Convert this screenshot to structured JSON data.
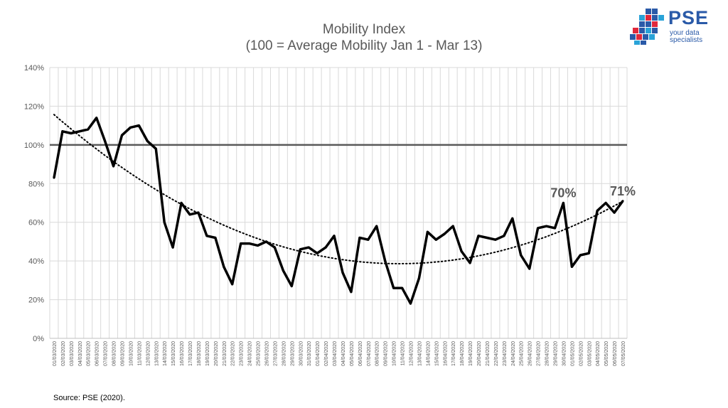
{
  "title_line1": "Mobility Index",
  "title_line2": "(100 = Average Mobility Jan 1 - Mar 13)",
  "source": "Source: PSE (2020).",
  "logo": {
    "name": "PSE",
    "tagline": "your data specialists",
    "colors": [
      "#2a5aa8",
      "#e0283c",
      "#29a3d8"
    ]
  },
  "chart_data": {
    "type": "line",
    "categories": [
      "01/03/2020",
      "02/03/2020",
      "03/03/2020",
      "04/03/2020",
      "05/03/2020",
      "06/03/2020",
      "07/03/2020",
      "08/03/2020",
      "09/03/2020",
      "10/03/2020",
      "11/03/2020",
      "12/03/2020",
      "13/03/2020",
      "14/03/2020",
      "15/03/2020",
      "16/03/2020",
      "17/03/2020",
      "18/03/2020",
      "19/03/2020",
      "20/03/2020",
      "21/03/2020",
      "22/03/2020",
      "23/03/2020",
      "24/03/2020",
      "25/03/2020",
      "26/03/2020",
      "27/03/2020",
      "28/03/2020",
      "29/03/2020",
      "30/03/2020",
      "31/03/2020",
      "01/04/2020",
      "02/04/2020",
      "03/04/2020",
      "04/04/2020",
      "05/04/2020",
      "06/04/2020",
      "07/04/2020",
      "08/04/2020",
      "09/04/2020",
      "10/04/2020",
      "11/04/2020",
      "12/04/2020",
      "13/04/2020",
      "14/04/2020",
      "15/04/2020",
      "16/04/2020",
      "17/04/2020",
      "18/04/2020",
      "19/04/2020",
      "20/04/2020",
      "21/04/2020",
      "22/04/2020",
      "23/04/2020",
      "24/04/2020",
      "25/04/2020",
      "26/04/2020",
      "27/04/2020",
      "28/04/2020",
      "29/04/2020",
      "30/04/2020",
      "01/05/2020",
      "02/05/2020",
      "03/05/2020",
      "04/05/2020",
      "05/05/2020",
      "06/05/2020",
      "07/05/2020"
    ],
    "values": [
      83,
      107,
      106,
      107,
      108,
      114,
      102,
      89,
      105,
      109,
      110,
      102,
      98,
      60,
      47,
      70,
      64,
      65,
      53,
      52,
      37,
      28,
      49,
      49,
      48,
      50,
      47,
      35,
      27,
      46,
      47,
      44,
      47,
      53,
      34,
      24,
      52,
      51,
      58,
      40,
      26,
      26,
      18,
      31,
      55,
      51,
      54,
      58,
      45,
      39,
      53,
      52,
      51,
      53,
      62,
      43,
      36,
      57,
      58,
      57,
      70,
      37,
      43,
      44,
      66,
      70,
      65,
      71
    ],
    "reference_line": 100,
    "trendline": "polynomial",
    "annotations": [
      {
        "index": 60,
        "text": "70%"
      },
      {
        "index": 67,
        "text": "71%"
      }
    ],
    "y_ticks": [
      "0%",
      "20%",
      "40%",
      "60%",
      "80%",
      "100%",
      "120%",
      "140%"
    ],
    "ylim": [
      0,
      140
    ],
    "grid": true,
    "colors": {
      "line": "#000000",
      "reference": "#595959",
      "grid": "#d9d9d9",
      "trend": "#000000"
    }
  }
}
